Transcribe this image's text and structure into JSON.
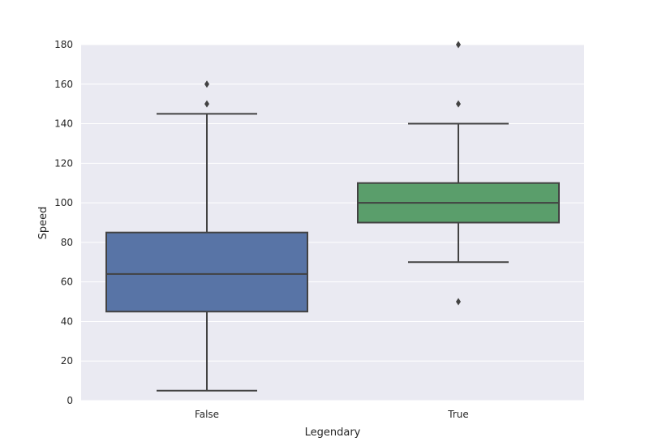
{
  "chart_data": {
    "type": "box",
    "title": "",
    "xlabel": "Legendary",
    "ylabel": "Speed",
    "ylim": [
      0,
      180
    ],
    "yticks": [
      0,
      20,
      40,
      60,
      80,
      100,
      120,
      140,
      160,
      180
    ],
    "grid": true,
    "legend": "none",
    "categories": [
      "False",
      "True"
    ],
    "boxes": [
      {
        "category": "False",
        "color": "#5874A6",
        "whisker_low": 5,
        "q1": 45,
        "median": 64,
        "q3": 85,
        "whisker_high": 145,
        "outliers": [
          150,
          160
        ]
      },
      {
        "category": "True",
        "color": "#5A9E6B",
        "whisker_low": 70,
        "q1": 90,
        "median": 100,
        "q3": 110,
        "whisker_high": 140,
        "outliers": [
          50,
          150,
          180
        ]
      }
    ],
    "colors": {
      "plot_background": "#EAEAF2",
      "grid": "#FFFFFF",
      "line": "#424242",
      "outlier": "#424242"
    }
  }
}
